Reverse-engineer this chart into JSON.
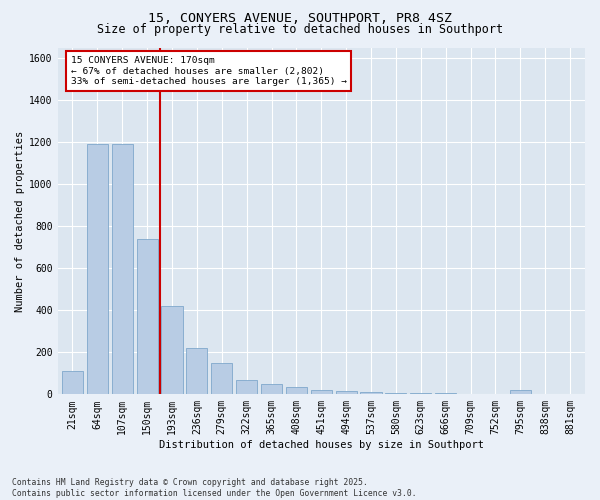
{
  "title": "15, CONYERS AVENUE, SOUTHPORT, PR8 4SZ",
  "subtitle": "Size of property relative to detached houses in Southport",
  "xlabel": "Distribution of detached houses by size in Southport",
  "ylabel": "Number of detached properties",
  "categories": [
    "21sqm",
    "64sqm",
    "107sqm",
    "150sqm",
    "193sqm",
    "236sqm",
    "279sqm",
    "322sqm",
    "365sqm",
    "408sqm",
    "451sqm",
    "494sqm",
    "537sqm",
    "580sqm",
    "623sqm",
    "666sqm",
    "709sqm",
    "752sqm",
    "795sqm",
    "838sqm",
    "881sqm"
  ],
  "values": [
    110,
    1190,
    1190,
    740,
    420,
    220,
    150,
    70,
    50,
    35,
    20,
    15,
    10,
    8,
    5,
    5,
    0,
    0,
    20,
    0,
    0
  ],
  "bar_color": "#b8cce4",
  "bar_edge_color": "#7fa8cc",
  "vline_pos": 3.5,
  "vline_color": "#cc0000",
  "annotation_line1": "15 CONYERS AVENUE: 170sqm",
  "annotation_line2": "← 67% of detached houses are smaller (2,802)",
  "annotation_line3": "33% of semi-detached houses are larger (1,365) →",
  "ylim": [
    0,
    1650
  ],
  "yticks": [
    0,
    200,
    400,
    600,
    800,
    1000,
    1200,
    1400,
    1600
  ],
  "footer_line1": "Contains HM Land Registry data © Crown copyright and database right 2025.",
  "footer_line2": "Contains public sector information licensed under the Open Government Licence v3.0.",
  "bg_color": "#eaf0f8",
  "plot_bg_color": "#dce6f0",
  "grid_color": "#ffffff",
  "title_fontsize": 9.5,
  "subtitle_fontsize": 8.5,
  "axis_label_fontsize": 7.5,
  "tick_fontsize": 7,
  "annotation_fontsize": 6.8,
  "footer_fontsize": 5.8
}
